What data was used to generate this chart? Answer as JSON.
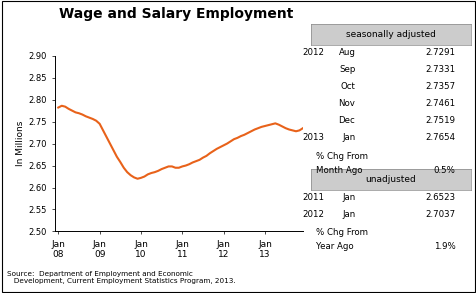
{
  "title": "Wage and Salary Employment",
  "ylabel": "In Millions",
  "ylim": [
    2.5,
    2.9
  ],
  "yticks": [
    2.5,
    2.55,
    2.6,
    2.65,
    2.7,
    2.75,
    2.8,
    2.85,
    2.9
  ],
  "line_color": "#E8621A",
  "line_width": 1.5,
  "background_color": "#ffffff",
  "source_text": "Source:  Department of Employment and Economic\n   Development, Current Employment Statistics Program, 2013.",
  "seasonally_adjusted_label": "seasonally adjusted",
  "sa_data": [
    [
      "2012",
      "Aug",
      "2.7291"
    ],
    [
      "",
      "Sep",
      "2.7331"
    ],
    [
      "",
      "Oct",
      "2.7357"
    ],
    [
      "",
      "Nov",
      "2.7461"
    ],
    [
      "",
      "Dec",
      "2.7519"
    ],
    [
      "2013",
      "Jan",
      "2.7654"
    ]
  ],
  "sa_pct_label1": "% Chg From",
  "sa_pct_label2": "Month Ago",
  "sa_pct_value": "0.5%",
  "unadjusted_label": "unadjusted",
  "ua_data": [
    [
      "2011",
      "Jan",
      "2.6523"
    ],
    [
      "2012",
      "Jan",
      "2.7037"
    ]
  ],
  "ua_pct_label1": "% Chg From",
  "ua_pct_label2": "Year Ago",
  "ua_pct_value": "1.9%",
  "x_tick_labels": [
    "Jan\n08",
    "Jan\n09",
    "Jan\n10",
    "Jan\n11",
    "Jan\n12",
    "Jan\n13"
  ],
  "x_tick_positions": [
    0,
    12,
    24,
    36,
    48,
    60
  ],
  "time_series": [
    2.782,
    2.786,
    2.784,
    2.779,
    2.775,
    2.771,
    2.769,
    2.766,
    2.762,
    2.759,
    2.756,
    2.752,
    2.745,
    2.73,
    2.715,
    2.7,
    2.685,
    2.67,
    2.658,
    2.645,
    2.635,
    2.628,
    2.623,
    2.62,
    2.622,
    2.625,
    2.63,
    2.633,
    2.635,
    2.638,
    2.642,
    2.645,
    2.648,
    2.648,
    2.645,
    2.645,
    2.648,
    2.65,
    2.653,
    2.657,
    2.66,
    2.663,
    2.668,
    2.672,
    2.678,
    2.683,
    2.688,
    2.692,
    2.696,
    2.7,
    2.705,
    2.71,
    2.713,
    2.717,
    2.72,
    2.724,
    2.728,
    2.732,
    2.735,
    2.738,
    2.74,
    2.742,
    2.744,
    2.746,
    2.743,
    2.739,
    2.735,
    2.732,
    2.73,
    2.728,
    2.73,
    2.735
  ]
}
